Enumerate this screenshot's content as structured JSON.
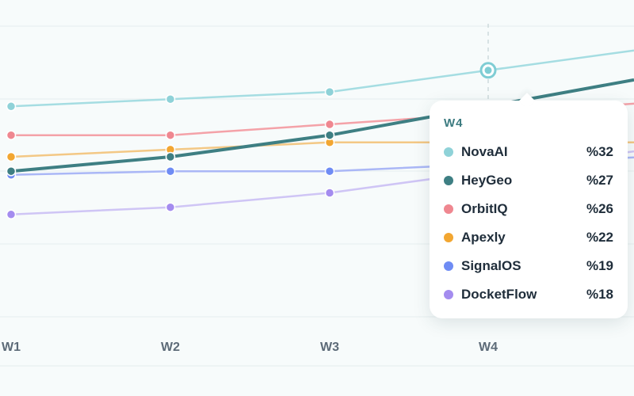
{
  "chart_data": {
    "type": "line",
    "categories": [
      "W1",
      "W2",
      "W3",
      "W4"
    ],
    "highlighted_category": "W4",
    "grid": true,
    "legend": "tooltip",
    "series": [
      {
        "name": "NovaAI",
        "color": "#a5dde2",
        "values": [
          27,
          28,
          29,
          32
        ]
      },
      {
        "name": "HeyGeo",
        "color": "#3e7f83",
        "values": [
          18,
          20,
          23,
          27
        ]
      },
      {
        "name": "OrbitIQ",
        "color": "#f4a2a8",
        "values": [
          23,
          23,
          24.5,
          26
        ]
      },
      {
        "name": "Apexly",
        "color": "#f3c885",
        "values": [
          20,
          21,
          22,
          22
        ]
      },
      {
        "name": "SignalOS",
        "color": "#aab7f6",
        "values": [
          17.5,
          18,
          18,
          19
        ]
      },
      {
        "name": "DocketFlow",
        "color": "#cfc5f5",
        "values": [
          12,
          13,
          15,
          18
        ]
      }
    ]
  },
  "tooltip": {
    "title": "W4",
    "items": [
      {
        "name": "NovaAI",
        "value": "%32",
        "color": "#8fd2d8"
      },
      {
        "name": "HeyGeo",
        "value": "%27",
        "color": "#3e7f83"
      },
      {
        "name": "OrbitIQ",
        "value": "%26",
        "color": "#ef8790"
      },
      {
        "name": "Apexly",
        "value": "%22",
        "color": "#f2a631"
      },
      {
        "name": "SignalOS",
        "value": "%19",
        "color": "#6f8cf4"
      },
      {
        "name": "DocketFlow",
        "value": "%18",
        "color": "#a48cef"
      }
    ]
  }
}
